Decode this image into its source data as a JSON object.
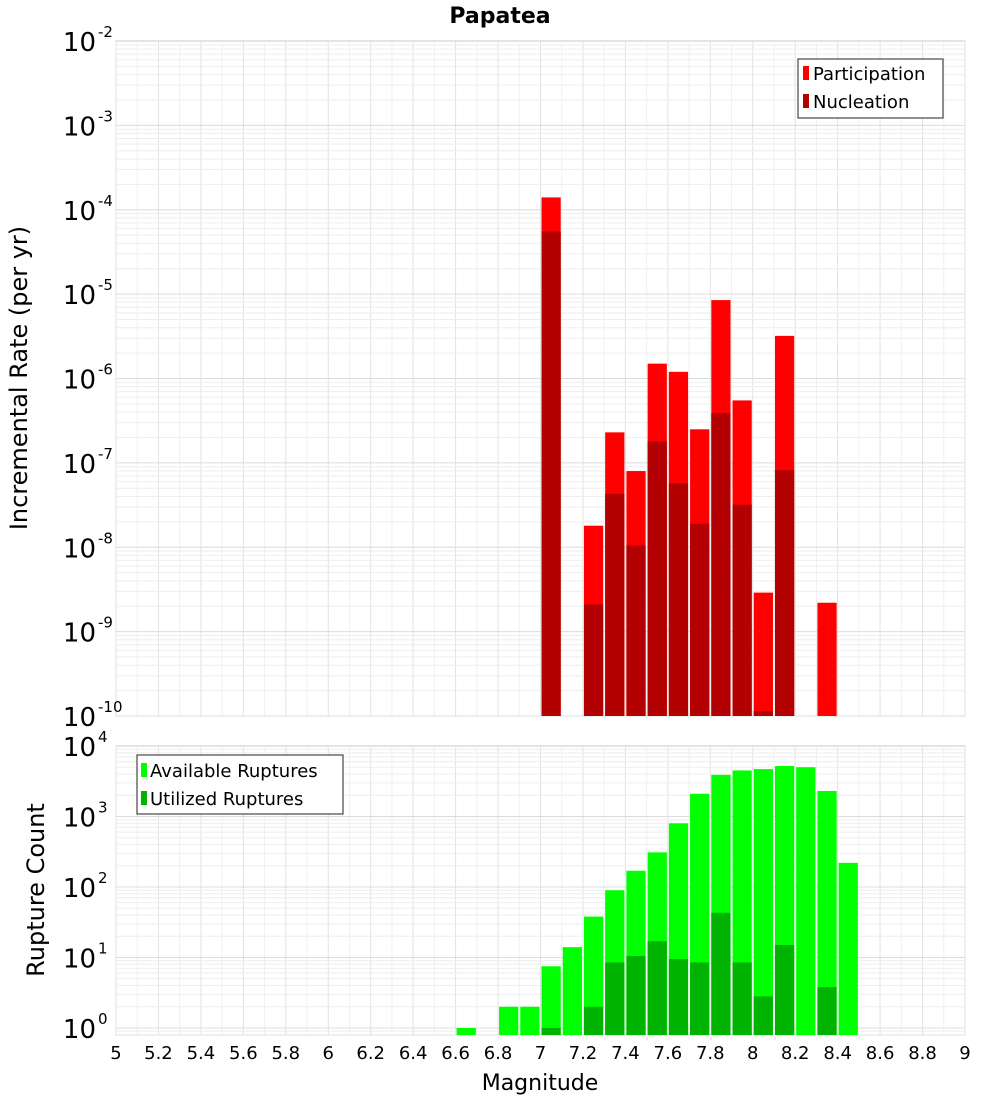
{
  "chart_data": [
    {
      "type": "bar",
      "title": "Papatea",
      "xlabel": "",
      "ylabel": "Incremental Rate (per yr)",
      "yscale": "log",
      "ylim_exp": [
        -10,
        -2
      ],
      "ytick_base": "10",
      "ytick_exponents": [
        "-10",
        "-9",
        "-8",
        "-7",
        "-6",
        "-5",
        "-4",
        "-3",
        "-2"
      ],
      "xlim": [
        5,
        9
      ],
      "bar_width": 0.1,
      "legend_position": "top-right",
      "series": [
        {
          "name": "Participation",
          "color": "#ff0000",
          "points": [
            {
              "x": 7.05,
              "y": 0.00014
            },
            {
              "x": 7.25,
              "y": 1.8e-08
            },
            {
              "x": 7.35,
              "y": 2.3e-07
            },
            {
              "x": 7.45,
              "y": 8e-08
            },
            {
              "x": 7.55,
              "y": 1.5e-06
            },
            {
              "x": 7.65,
              "y": 1.2e-06
            },
            {
              "x": 7.75,
              "y": 2.5e-07
            },
            {
              "x": 7.85,
              "y": 8.5e-06
            },
            {
              "x": 7.95,
              "y": 5.5e-07
            },
            {
              "x": 8.05,
              "y": 2.9e-09
            },
            {
              "x": 8.15,
              "y": 3.2e-06
            },
            {
              "x": 8.35,
              "y": 2.2e-09
            }
          ]
        },
        {
          "name": "Nucleation",
          "color": "#b30000",
          "points": [
            {
              "x": 7.05,
              "y": 5.5e-05
            },
            {
              "x": 7.25,
              "y": 2.1e-09
            },
            {
              "x": 7.35,
              "y": 4.3e-08
            },
            {
              "x": 7.45,
              "y": 1.05e-08
            },
            {
              "x": 7.55,
              "y": 1.8e-07
            },
            {
              "x": 7.65,
              "y": 5.7e-08
            },
            {
              "x": 7.75,
              "y": 1.9e-08
            },
            {
              "x": 7.85,
              "y": 3.9e-07
            },
            {
              "x": 7.95,
              "y": 3.2e-08
            },
            {
              "x": 8.05,
              "y": 1.15e-10
            },
            {
              "x": 8.15,
              "y": 8.2e-08
            }
          ]
        }
      ]
    },
    {
      "type": "bar",
      "title": "",
      "xlabel": "Magnitude",
      "ylabel": "Rupture Count",
      "yscale": "log",
      "ylim_exp": [
        -0.1,
        4
      ],
      "ytick_base": "10",
      "ytick_exponents": [
        "0",
        "1",
        "2",
        "3",
        "4"
      ],
      "xlim": [
        5,
        9
      ],
      "xticks": [
        "5",
        "5.2",
        "5.4",
        "5.6",
        "5.8",
        "6",
        "6.2",
        "6.4",
        "6.6",
        "6.8",
        "7",
        "7.2",
        "7.4",
        "7.6",
        "7.8",
        "8",
        "8.2",
        "8.4",
        "8.6",
        "8.8",
        "9"
      ],
      "bar_width": 0.1,
      "legend_position": "top-left",
      "series": [
        {
          "name": "Available Ruptures",
          "color": "#00ff00",
          "points": [
            {
              "x": 6.65,
              "y": 1
            },
            {
              "x": 6.85,
              "y": 2
            },
            {
              "x": 6.95,
              "y": 2
            },
            {
              "x": 7.05,
              "y": 7.5
            },
            {
              "x": 7.15,
              "y": 14
            },
            {
              "x": 7.25,
              "y": 38
            },
            {
              "x": 7.35,
              "y": 90
            },
            {
              "x": 7.45,
              "y": 170
            },
            {
              "x": 7.55,
              "y": 310
            },
            {
              "x": 7.65,
              "y": 800
            },
            {
              "x": 7.75,
              "y": 2100
            },
            {
              "x": 7.85,
              "y": 3900
            },
            {
              "x": 7.95,
              "y": 4500
            },
            {
              "x": 8.05,
              "y": 4700
            },
            {
              "x": 8.15,
              "y": 5200
            },
            {
              "x": 8.25,
              "y": 5000
            },
            {
              "x": 8.35,
              "y": 2300
            },
            {
              "x": 8.45,
              "y": 220
            }
          ]
        },
        {
          "name": "Utilized Ruptures",
          "color": "#00b300",
          "points": [
            {
              "x": 7.05,
              "y": 1
            },
            {
              "x": 7.25,
              "y": 2
            },
            {
              "x": 7.35,
              "y": 8.5
            },
            {
              "x": 7.45,
              "y": 10.5
            },
            {
              "x": 7.55,
              "y": 17
            },
            {
              "x": 7.65,
              "y": 9.5
            },
            {
              "x": 7.75,
              "y": 8.5
            },
            {
              "x": 7.85,
              "y": 43
            },
            {
              "x": 7.95,
              "y": 8.5
            },
            {
              "x": 8.05,
              "y": 2.8
            },
            {
              "x": 8.15,
              "y": 15
            },
            {
              "x": 8.35,
              "y": 3.8
            }
          ]
        }
      ]
    }
  ]
}
